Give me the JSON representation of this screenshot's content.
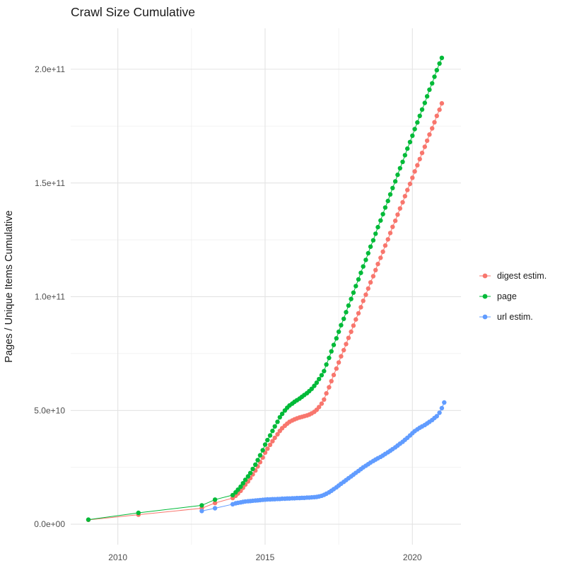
{
  "page": {
    "background": "#ffffff"
  },
  "chart_data": {
    "type": "scatter",
    "title": "Crawl Size Cumulative",
    "xlabel": "",
    "ylabel": "Pages / Unique Items Cumulative",
    "grid": true,
    "legend_position": "right",
    "xlim": [
      2008.4,
      2021.65
    ],
    "ylim": [
      -9,
      218
    ],
    "y_scale": 1000000000,
    "x_ticks": [
      {
        "value": 2010,
        "label": "2010"
      },
      {
        "value": 2015,
        "label": "2015"
      },
      {
        "value": 2020,
        "label": "2020"
      }
    ],
    "x_minor_ticks": [
      2012.5,
      2017.5
    ],
    "y_ticks": [
      {
        "value": 0,
        "label": "0.0e+00"
      },
      {
        "value": 50,
        "label": "5.0e+10"
      },
      {
        "value": 100,
        "label": "1.0e+11"
      },
      {
        "value": 150,
        "label": "1.5e+11"
      },
      {
        "value": 200,
        "label": "2.0e+11"
      }
    ],
    "y_minor_ticks": [
      25,
      75,
      125,
      175
    ],
    "series": [
      {
        "name": "digest estim.",
        "color": "#F8766D",
        "points": [
          [
            2009.0,
            1.9
          ],
          [
            2010.7,
            4.2
          ],
          [
            2012.85,
            7.0
          ],
          [
            2013.3,
            9.3
          ],
          [
            2013.9,
            11.5
          ],
          [
            2014.0,
            12.5
          ],
          [
            2014.08,
            13.5
          ],
          [
            2014.17,
            14.7
          ],
          [
            2014.25,
            16.0
          ],
          [
            2014.33,
            17.4
          ],
          [
            2014.42,
            18.8
          ],
          [
            2014.5,
            20.3
          ],
          [
            2014.58,
            21.9
          ],
          [
            2014.67,
            23.6
          ],
          [
            2014.75,
            25.4
          ],
          [
            2014.83,
            27.3
          ],
          [
            2014.92,
            29.3
          ],
          [
            2015.0,
            31.5
          ],
          [
            2015.08,
            33.2
          ],
          [
            2015.17,
            34.9
          ],
          [
            2015.25,
            36.5
          ],
          [
            2015.33,
            38.0
          ],
          [
            2015.42,
            39.5
          ],
          [
            2015.5,
            41.0
          ],
          [
            2015.58,
            42.2
          ],
          [
            2015.67,
            43.3
          ],
          [
            2015.75,
            44.2
          ],
          [
            2015.83,
            45.0
          ],
          [
            2015.92,
            45.6
          ],
          [
            2016.0,
            46.1
          ],
          [
            2016.08,
            46.5
          ],
          [
            2016.17,
            46.9
          ],
          [
            2016.25,
            47.2
          ],
          [
            2016.33,
            47.5
          ],
          [
            2016.42,
            47.8
          ],
          [
            2016.5,
            48.2
          ],
          [
            2016.58,
            48.7
          ],
          [
            2016.67,
            49.4
          ],
          [
            2016.75,
            50.3
          ],
          [
            2016.83,
            51.5
          ],
          [
            2016.92,
            53.0
          ],
          [
            2017.0,
            54.8
          ],
          [
            2017.08,
            57.5
          ],
          [
            2017.17,
            60.2
          ],
          [
            2017.25,
            62.9
          ],
          [
            2017.33,
            65.6
          ],
          [
            2017.42,
            68.4
          ],
          [
            2017.5,
            71.1
          ],
          [
            2017.58,
            73.8
          ],
          [
            2017.67,
            76.5
          ],
          [
            2017.75,
            79.2
          ],
          [
            2017.83,
            81.9
          ],
          [
            2017.92,
            84.6
          ],
          [
            2018.0,
            87.3
          ],
          [
            2018.08,
            90.0
          ],
          [
            2018.17,
            92.7
          ],
          [
            2018.25,
            95.4
          ],
          [
            2018.33,
            98.2
          ],
          [
            2018.42,
            100.9
          ],
          [
            2018.5,
            103.6
          ],
          [
            2018.58,
            106.3
          ],
          [
            2018.67,
            109.0
          ],
          [
            2018.75,
            111.7
          ],
          [
            2018.83,
            114.4
          ],
          [
            2018.92,
            117.1
          ],
          [
            2019.0,
            119.8
          ],
          [
            2019.08,
            122.5
          ],
          [
            2019.17,
            125.2
          ],
          [
            2019.25,
            128.0
          ],
          [
            2019.33,
            130.7
          ],
          [
            2019.42,
            133.4
          ],
          [
            2019.5,
            136.1
          ],
          [
            2019.58,
            138.8
          ],
          [
            2019.67,
            141.5
          ],
          [
            2019.75,
            144.2
          ],
          [
            2019.83,
            146.9
          ],
          [
            2019.92,
            149.6
          ],
          [
            2020.0,
            152.3
          ],
          [
            2020.08,
            155.1
          ],
          [
            2020.17,
            157.8
          ],
          [
            2020.25,
            160.5
          ],
          [
            2020.33,
            163.2
          ],
          [
            2020.42,
            165.9
          ],
          [
            2020.5,
            168.6
          ],
          [
            2020.58,
            171.3
          ],
          [
            2020.67,
            174.0
          ],
          [
            2020.75,
            176.7
          ],
          [
            2020.83,
            179.5
          ],
          [
            2020.92,
            182.2
          ],
          [
            2021.0,
            185.0
          ]
        ]
      },
      {
        "name": "page",
        "color": "#00BA38",
        "points": [
          [
            2009.0,
            2.0
          ],
          [
            2010.7,
            5.0
          ],
          [
            2012.85,
            8.3
          ],
          [
            2013.3,
            10.8
          ],
          [
            2013.9,
            12.8
          ],
          [
            2014.0,
            14.0
          ],
          [
            2014.08,
            15.2
          ],
          [
            2014.17,
            16.5
          ],
          [
            2014.25,
            18.0
          ],
          [
            2014.33,
            19.5
          ],
          [
            2014.42,
            21.0
          ],
          [
            2014.5,
            22.5
          ],
          [
            2014.58,
            24.3
          ],
          [
            2014.67,
            26.2
          ],
          [
            2014.75,
            28.2
          ],
          [
            2014.83,
            30.3
          ],
          [
            2014.92,
            32.5
          ],
          [
            2015.0,
            35.0
          ],
          [
            2015.08,
            37.0
          ],
          [
            2015.17,
            39.0
          ],
          [
            2015.25,
            41.0
          ],
          [
            2015.33,
            43.0
          ],
          [
            2015.42,
            45.0
          ],
          [
            2015.5,
            47.0
          ],
          [
            2015.58,
            48.5
          ],
          [
            2015.67,
            50.0
          ],
          [
            2015.75,
            51.2
          ],
          [
            2015.83,
            52.2
          ],
          [
            2015.92,
            53.0
          ],
          [
            2016.0,
            53.8
          ],
          [
            2016.08,
            54.5
          ],
          [
            2016.17,
            55.2
          ],
          [
            2016.25,
            56.0
          ],
          [
            2016.33,
            56.8
          ],
          [
            2016.42,
            57.6
          ],
          [
            2016.5,
            58.5
          ],
          [
            2016.58,
            59.5
          ],
          [
            2016.67,
            60.8
          ],
          [
            2016.75,
            62.2
          ],
          [
            2016.83,
            63.8
          ],
          [
            2016.92,
            65.5
          ],
          [
            2017.0,
            67.3
          ],
          [
            2017.08,
            70.2
          ],
          [
            2017.17,
            73.1
          ],
          [
            2017.25,
            76.0
          ],
          [
            2017.33,
            78.8
          ],
          [
            2017.42,
            81.7
          ],
          [
            2017.5,
            84.6
          ],
          [
            2017.58,
            87.5
          ],
          [
            2017.67,
            90.3
          ],
          [
            2017.75,
            93.2
          ],
          [
            2017.83,
            96.1
          ],
          [
            2017.92,
            99.0
          ],
          [
            2018.0,
            101.8
          ],
          [
            2018.08,
            104.7
          ],
          [
            2018.17,
            107.6
          ],
          [
            2018.25,
            110.5
          ],
          [
            2018.33,
            113.3
          ],
          [
            2018.42,
            116.2
          ],
          [
            2018.5,
            119.1
          ],
          [
            2018.58,
            122.0
          ],
          [
            2018.67,
            124.8
          ],
          [
            2018.75,
            127.7
          ],
          [
            2018.83,
            130.6
          ],
          [
            2018.92,
            133.5
          ],
          [
            2019.0,
            136.3
          ],
          [
            2019.08,
            139.2
          ],
          [
            2019.17,
            142.1
          ],
          [
            2019.25,
            145.0
          ],
          [
            2019.33,
            147.8
          ],
          [
            2019.42,
            150.7
          ],
          [
            2019.5,
            153.6
          ],
          [
            2019.58,
            156.5
          ],
          [
            2019.67,
            159.3
          ],
          [
            2019.75,
            162.2
          ],
          [
            2019.83,
            165.1
          ],
          [
            2019.92,
            168.0
          ],
          [
            2020.0,
            170.8
          ],
          [
            2020.08,
            173.7
          ],
          [
            2020.17,
            176.6
          ],
          [
            2020.25,
            179.5
          ],
          [
            2020.33,
            182.3
          ],
          [
            2020.42,
            185.2
          ],
          [
            2020.5,
            188.1
          ],
          [
            2020.58,
            191.0
          ],
          [
            2020.67,
            193.8
          ],
          [
            2020.75,
            196.7
          ],
          [
            2020.83,
            199.6
          ],
          [
            2020.92,
            202.5
          ],
          [
            2021.0,
            205.0
          ]
        ]
      },
      {
        "name": "url estim.",
        "color": "#619CFF",
        "points": [
          [
            2012.85,
            5.8
          ],
          [
            2013.3,
            7.0
          ],
          [
            2013.9,
            8.8
          ],
          [
            2014.0,
            9.2
          ],
          [
            2014.08,
            9.4
          ],
          [
            2014.17,
            9.6
          ],
          [
            2014.25,
            9.8
          ],
          [
            2014.33,
            10.0
          ],
          [
            2014.42,
            10.1
          ],
          [
            2014.5,
            10.2
          ],
          [
            2014.58,
            10.3
          ],
          [
            2014.67,
            10.4
          ],
          [
            2014.75,
            10.5
          ],
          [
            2014.83,
            10.6
          ],
          [
            2014.92,
            10.7
          ],
          [
            2015.0,
            10.8
          ],
          [
            2015.08,
            10.9
          ],
          [
            2015.17,
            10.9
          ],
          [
            2015.25,
            11.0
          ],
          [
            2015.33,
            11.0
          ],
          [
            2015.42,
            11.1
          ],
          [
            2015.5,
            11.1
          ],
          [
            2015.58,
            11.2
          ],
          [
            2015.67,
            11.2
          ],
          [
            2015.75,
            11.3
          ],
          [
            2015.83,
            11.3
          ],
          [
            2015.92,
            11.4
          ],
          [
            2016.0,
            11.4
          ],
          [
            2016.08,
            11.5
          ],
          [
            2016.17,
            11.5
          ],
          [
            2016.25,
            11.6
          ],
          [
            2016.33,
            11.6
          ],
          [
            2016.42,
            11.7
          ],
          [
            2016.5,
            11.7
          ],
          [
            2016.58,
            11.8
          ],
          [
            2016.67,
            11.9
          ],
          [
            2016.75,
            12.0
          ],
          [
            2016.83,
            12.2
          ],
          [
            2016.92,
            12.5
          ],
          [
            2017.0,
            12.9
          ],
          [
            2017.08,
            13.4
          ],
          [
            2017.17,
            14.0
          ],
          [
            2017.25,
            14.7
          ],
          [
            2017.33,
            15.4
          ],
          [
            2017.42,
            16.2
          ],
          [
            2017.5,
            17.0
          ],
          [
            2017.58,
            17.8
          ],
          [
            2017.67,
            18.6
          ],
          [
            2017.75,
            19.4
          ],
          [
            2017.83,
            20.2
          ],
          [
            2017.92,
            21.0
          ],
          [
            2018.0,
            21.8
          ],
          [
            2018.08,
            22.6
          ],
          [
            2018.17,
            23.4
          ],
          [
            2018.25,
            24.2
          ],
          [
            2018.33,
            25.0
          ],
          [
            2018.42,
            25.7
          ],
          [
            2018.5,
            26.4
          ],
          [
            2018.58,
            27.1
          ],
          [
            2018.67,
            27.8
          ],
          [
            2018.75,
            28.4
          ],
          [
            2018.83,
            29.0
          ],
          [
            2018.92,
            29.6
          ],
          [
            2019.0,
            30.2
          ],
          [
            2019.08,
            30.9
          ],
          [
            2019.17,
            31.6
          ],
          [
            2019.25,
            32.3
          ],
          [
            2019.33,
            33.0
          ],
          [
            2019.42,
            33.8
          ],
          [
            2019.5,
            34.6
          ],
          [
            2019.58,
            35.4
          ],
          [
            2019.67,
            36.2
          ],
          [
            2019.75,
            37.1
          ],
          [
            2019.83,
            38.0
          ],
          [
            2019.92,
            39.0
          ],
          [
            2020.0,
            40.0
          ],
          [
            2020.08,
            40.9
          ],
          [
            2020.17,
            41.7
          ],
          [
            2020.25,
            42.4
          ],
          [
            2020.33,
            43.0
          ],
          [
            2020.42,
            43.6
          ],
          [
            2020.5,
            44.3
          ],
          [
            2020.58,
            45.0
          ],
          [
            2020.67,
            45.8
          ],
          [
            2020.75,
            46.7
          ],
          [
            2020.83,
            47.5
          ],
          [
            2020.92,
            49.0
          ],
          [
            2021.0,
            51.0
          ],
          [
            2021.08,
            53.5
          ]
        ]
      }
    ],
    "style": {
      "grid_major_color": "#e3e3e3",
      "grid_minor_color": "#efefef",
      "tick_label_color": "#4d4d4d",
      "text_color": "#1a1a1a"
    }
  }
}
